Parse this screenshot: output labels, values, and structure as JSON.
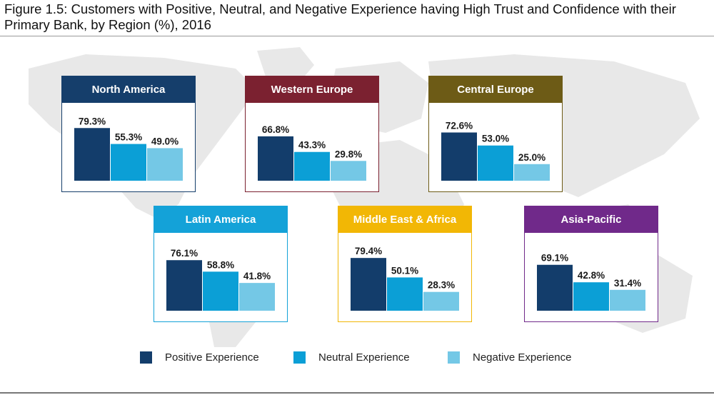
{
  "title": "Figure 1.5: Customers with Positive, Neutral, and Negative Experience having High Trust and Confidence with their Primary Bank, by Region (%), 2016",
  "colors": {
    "positive": "#133d6b",
    "neutral": "#0b9fd6",
    "negative": "#74c8e6"
  },
  "chart_data": {
    "type": "bar",
    "title": "Customers with Positive, Neutral, and Negative Experience having High Trust and Confidence with their Primary Bank, by Region (%), 2016",
    "series_names": [
      "Positive Experience",
      "Neutral Experience",
      "Negative Experience"
    ],
    "ylim": [
      0,
      100
    ],
    "panels": [
      {
        "region": "North America",
        "header_color": "#153e6b",
        "values": [
          79.3,
          55.3,
          49.0
        ],
        "labels": [
          "79.3%",
          "55.3%",
          "49.0%"
        ]
      },
      {
        "region": "Western Europe",
        "header_color": "#7b2130",
        "values": [
          66.8,
          43.3,
          29.8
        ],
        "labels": [
          "66.8%",
          "43.3%",
          "29.8%"
        ]
      },
      {
        "region": "Central Europe",
        "header_color": "#6d5b16",
        "values": [
          72.6,
          53.0,
          25.0
        ],
        "labels": [
          "72.6%",
          "53.0%",
          "25.0%"
        ]
      },
      {
        "region": "Latin America",
        "header_color": "#14a2d8",
        "values": [
          76.1,
          58.8,
          41.8
        ],
        "labels": [
          "76.1%",
          "58.8%",
          "41.8%"
        ]
      },
      {
        "region": "Middle East & Africa",
        "header_color": "#f2b705",
        "values": [
          79.4,
          50.1,
          28.3
        ],
        "labels": [
          "79.4%",
          "50.1%",
          "28.3%"
        ]
      },
      {
        "region": "Asia-Pacific",
        "header_color": "#70298a",
        "values": [
          69.1,
          42.8,
          31.4
        ],
        "labels": [
          "69.1%",
          "42.8%",
          "31.4%"
        ]
      }
    ]
  },
  "legend": [
    {
      "label": "Positive Experience"
    },
    {
      "label": "Neutral Experience"
    },
    {
      "label": "Negative Experience"
    }
  ]
}
